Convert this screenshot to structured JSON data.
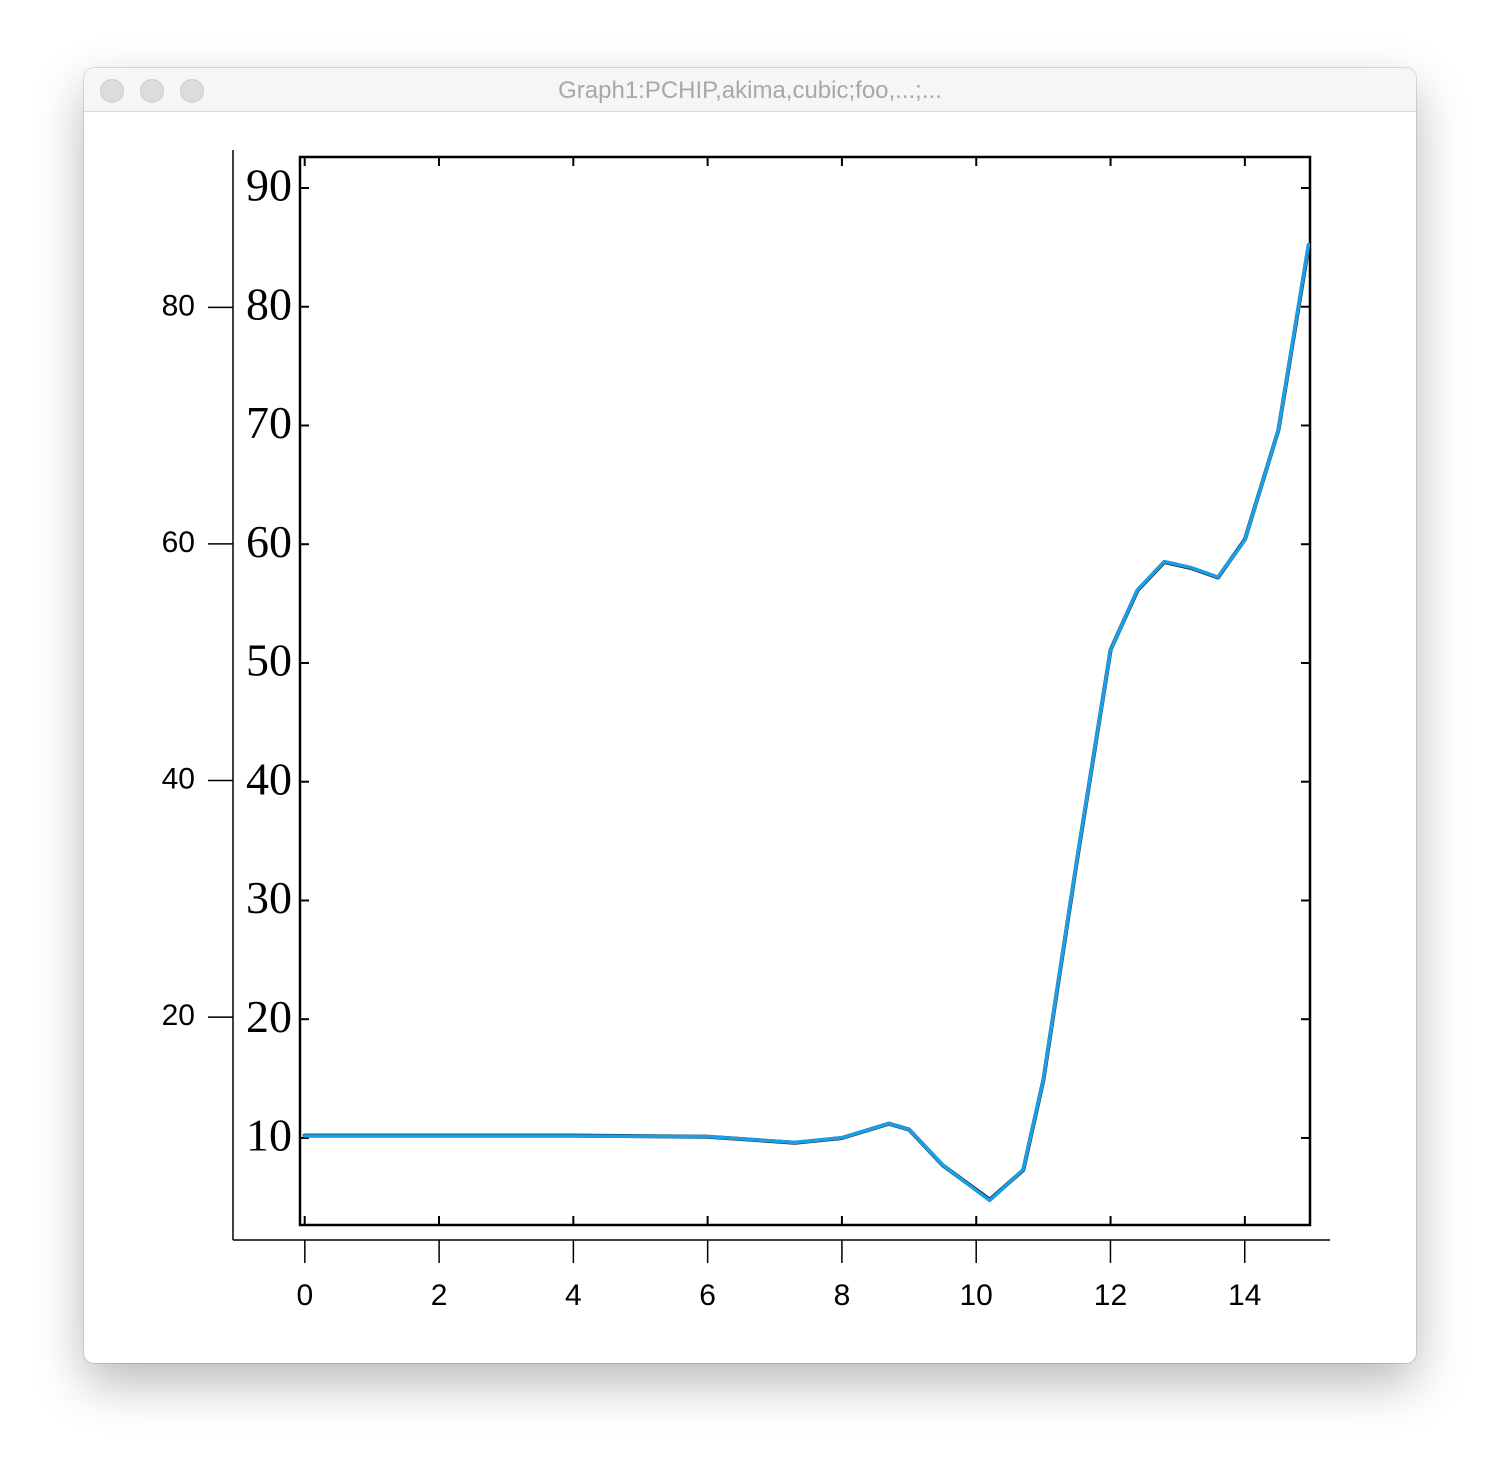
{
  "window": {
    "title": "Graph1:PCHIP,akima,cubic;foo,...;..."
  },
  "chart_data": [
    {
      "type": "line",
      "x": [
        0,
        2,
        4,
        6,
        7.3,
        8,
        8.7,
        9,
        9.5,
        10.2,
        10.7,
        11,
        11.5,
        12,
        12.4,
        12.8,
        13.2,
        13.6,
        14,
        14.5,
        14.95
      ],
      "values": [
        9.95,
        9.95,
        9.95,
        9.9,
        9.4,
        9.8,
        11.0,
        10.5,
        7.5,
        4.5,
        7.1,
        14.7,
        33.3,
        51.0,
        56.1,
        58.5,
        58.0,
        57.2,
        60.3,
        69.6,
        85.3
      ],
      "color": "#1a9ee8",
      "xlim": [
        -1.07,
        15.27
      ],
      "xticks": [
        0,
        2,
        4,
        6,
        8,
        10,
        12,
        14
      ],
      "ylim": [
        1.16,
        93.3
      ],
      "yticks": [
        20,
        40,
        60,
        80
      ]
    },
    {
      "type": "line",
      "x": [
        0,
        2,
        4,
        6,
        7.3,
        8,
        8.7,
        9,
        9.5,
        10.2,
        10.7,
        11,
        11.5,
        12,
        12.4,
        12.8,
        13.2,
        13.6,
        14,
        14.5,
        14.95
      ],
      "values": [
        10.2,
        10.2,
        10.2,
        10.1,
        9.6,
        10.0,
        11.2,
        10.7,
        7.7,
        4.8,
        7.3,
        14.9,
        33.4,
        51.1,
        56.1,
        58.5,
        58.0,
        57.2,
        60.4,
        69.6,
        85.2
      ],
      "color": "#111111",
      "xlim": [
        -0.07,
        14.97
      ],
      "xticks": [
        0,
        2,
        4,
        6,
        8,
        10,
        12,
        14
      ],
      "ylim": [
        2.67,
        92.61
      ],
      "yticks": [
        10,
        20,
        30,
        40,
        50,
        60,
        70,
        80,
        90
      ]
    }
  ]
}
